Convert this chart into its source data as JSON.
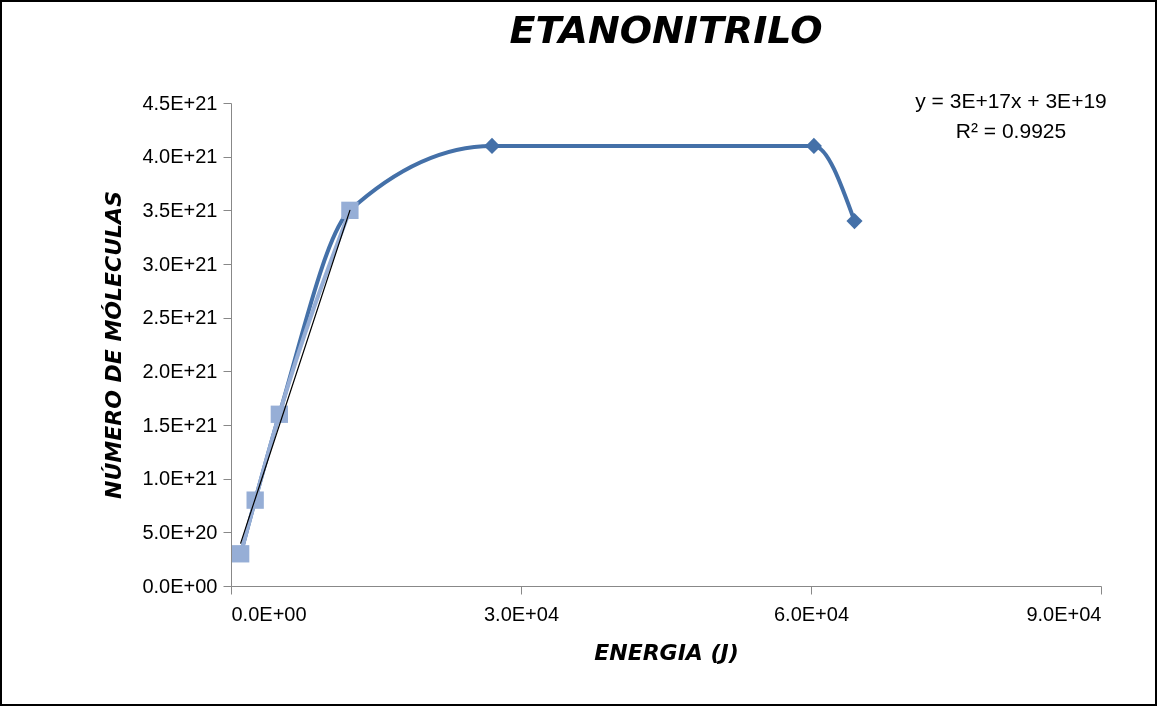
{
  "chart_data": {
    "type": "line",
    "title": "ETANONITRILO",
    "xlabel": "ENERGIA (J)",
    "ylabel": "NÚMERO DE MÓLECULAS",
    "xlim": [
      0,
      90000
    ],
    "ylim": [
      0,
      4.5e+21
    ],
    "xticks": [
      {
        "value": 0,
        "label": "0.0E+00"
      },
      {
        "value": 30000,
        "label": "3.0E+04"
      },
      {
        "value": 60000,
        "label": "6.0E+04"
      },
      {
        "value": 90000,
        "label": "9.0E+04"
      }
    ],
    "yticks": [
      {
        "value": 0,
        "label": "0.0E+00"
      },
      {
        "value": 5e+20,
        "label": "5.0E+20"
      },
      {
        "value": 1e+21,
        "label": "1.0E+21"
      },
      {
        "value": 1.5e+21,
        "label": "1.5E+21"
      },
      {
        "value": 2e+21,
        "label": "2.0E+21"
      },
      {
        "value": 2.5e+21,
        "label": "2.5E+21"
      },
      {
        "value": 3e+21,
        "label": "3.0E+21"
      },
      {
        "value": 3.5e+21,
        "label": "3.5E+21"
      },
      {
        "value": 4e+21,
        "label": "4.0E+21"
      },
      {
        "value": 4.5e+21,
        "label": "4.5E+21"
      }
    ],
    "grid": false,
    "annotations": [
      "y = 3E+17x + 3E+19",
      "R² = 0.9925"
    ],
    "series": [
      {
        "type": "line",
        "marker": "diamond",
        "color": "#4470a8",
        "x": [
          1000,
          2500,
          5000,
          12300,
          27000,
          60300,
          64500
        ],
        "values": [
          3e+20,
          8e+20,
          1.6e+21,
          3.5e+21,
          4.1e+21,
          4.1e+21,
          3.4e+21
        ]
      },
      {
        "type": "line",
        "marker": "square",
        "color": "#96aed6",
        "x": [
          1000,
          2500,
          5000,
          12300
        ],
        "values": [
          3e+20,
          8e+20,
          1.6e+21,
          3.5e+21
        ]
      },
      {
        "type": "line",
        "marker": "none",
        "color": "#000000",
        "x": [
          1000,
          12300
        ],
        "values": [
          4e+20,
          3.5e+21
        ]
      }
    ]
  }
}
